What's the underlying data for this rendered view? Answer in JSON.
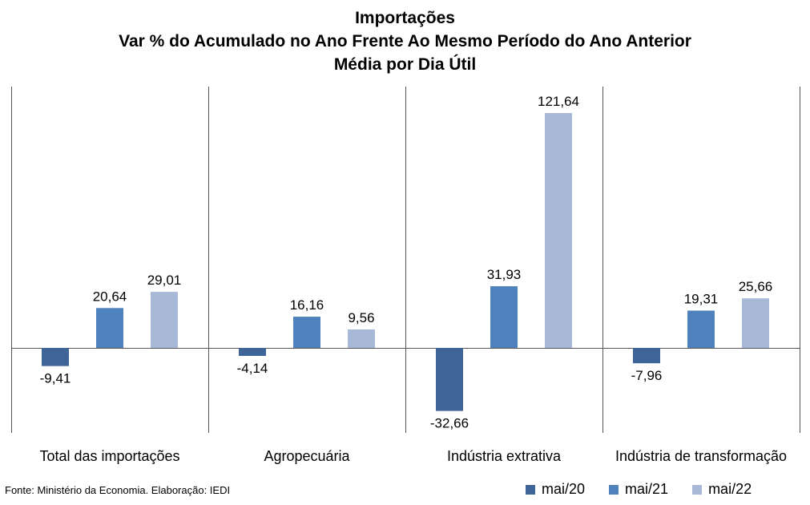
{
  "chart_data": {
    "type": "bar",
    "title_lines": [
      "Importações",
      "Var % do Acumulado no Ano Frente Ao Mesmo Período do Ano Anterior",
      "Média por Dia Útil"
    ],
    "categories": [
      "Total das importações",
      "Agropecuária",
      "Indústria extrativa",
      "Indústria de transformação"
    ],
    "series": [
      {
        "name": "mai/20",
        "color": "#3F6598",
        "values": [
          -9.41,
          -4.14,
          -32.66,
          -7.96
        ],
        "labels": [
          "-9,41",
          "-4,14",
          "-32,66",
          "-7,96"
        ]
      },
      {
        "name": "mai/21",
        "color": "#4F81BD",
        "values": [
          20.64,
          16.16,
          31.93,
          19.31
        ],
        "labels": [
          "20,64",
          "16,16",
          "31,93",
          "19,31"
        ]
      },
      {
        "name": "mai/22",
        "color": "#A8B9D7",
        "values": [
          29.01,
          9.56,
          121.64,
          25.66
        ],
        "labels": [
          "29,01",
          "9,56",
          "121,64",
          "25,66"
        ]
      }
    ],
    "legend_position": "bottom-right",
    "grid": false,
    "source": "Fonte: Ministério da Economia. Elaboração: IEDI"
  }
}
